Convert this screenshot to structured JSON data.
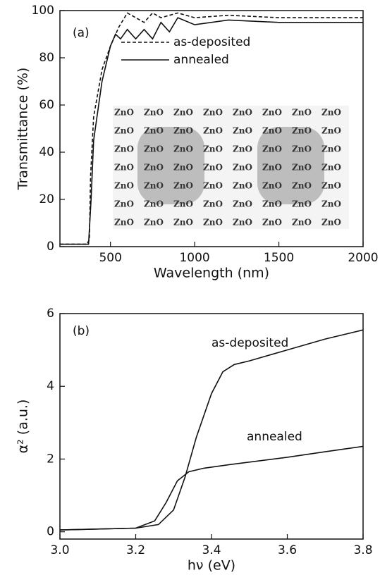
{
  "chart_data": [
    {
      "type": "line",
      "annotation": "(a)",
      "inset_text": "ZnO",
      "x_label": "Wavelength (nm)",
      "y_label": "Transmittance (%)",
      "xlim": [
        200,
        2000
      ],
      "ylim": [
        0,
        100
      ],
      "xticks": [
        500,
        1000,
        1500,
        2000
      ],
      "yticks": [
        0,
        20,
        40,
        60,
        80,
        100
      ],
      "legend": "top-center",
      "series": [
        {
          "name": "as-deposited",
          "color": "#111111",
          "dash": "dashed",
          "x": [
            200,
            360,
            375,
            382,
            400,
            450,
            500,
            550,
            600,
            650,
            700,
            750,
            800,
            900,
            1000,
            1200,
            1500,
            2000
          ],
          "values": [
            1,
            1,
            3,
            30,
            55,
            75,
            85,
            93,
            99,
            97,
            95,
            99,
            97,
            99,
            97,
            98,
            97,
            97
          ]
        },
        {
          "name": "annealed",
          "color": "#111111",
          "dash": "solid",
          "x": [
            200,
            370,
            385,
            400,
            450,
            500,
            530,
            560,
            600,
            650,
            700,
            750,
            800,
            850,
            900,
            1000,
            1200,
            1500,
            2000
          ],
          "values": [
            1,
            1,
            20,
            45,
            70,
            85,
            90,
            88,
            92,
            88,
            92,
            88,
            95,
            91,
            97,
            94,
            96,
            95,
            95
          ]
        }
      ]
    },
    {
      "type": "line",
      "annotations": [
        "(b)",
        "as-deposited",
        "annealed"
      ],
      "x_label": "hν (eV)",
      "y_label": "α² (a.u.)",
      "xlim": [
        3.0,
        3.8
      ],
      "ylim": [
        -0.2,
        6
      ],
      "xticks": [
        {
          "value": 3.0,
          "label": "3.0"
        },
        3.2,
        3.4,
        3.6,
        3.8
      ],
      "yticks": [
        0,
        2,
        4,
        6
      ],
      "series": [
        {
          "name": "as-deposited",
          "color": "#111111",
          "dash": "solid",
          "x": [
            3.0,
            3.2,
            3.26,
            3.3,
            3.33,
            3.36,
            3.4,
            3.43,
            3.46,
            3.5,
            3.6,
            3.7,
            3.8
          ],
          "values": [
            0.05,
            0.1,
            0.2,
            0.6,
            1.5,
            2.6,
            3.8,
            4.4,
            4.6,
            4.7,
            5.0,
            5.3,
            5.55
          ]
        },
        {
          "name": "annealed",
          "color": "#111111",
          "dash": "solid",
          "x": [
            3.0,
            3.2,
            3.25,
            3.28,
            3.31,
            3.34,
            3.38,
            3.45,
            3.6,
            3.7,
            3.8
          ],
          "values": [
            0.05,
            0.1,
            0.3,
            0.8,
            1.4,
            1.65,
            1.75,
            1.85,
            2.05,
            2.2,
            2.35
          ]
        }
      ]
    }
  ]
}
